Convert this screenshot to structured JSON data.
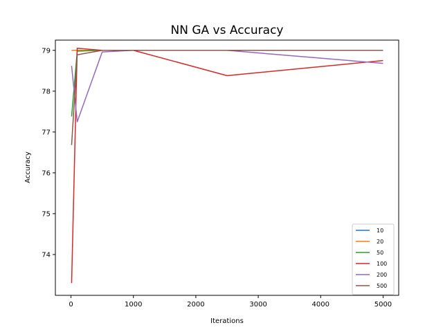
{
  "chart_data": {
    "type": "line",
    "title": "NN GA vs Accuracy",
    "xlabel": "Iterations",
    "ylabel": "Accuracy",
    "xlim": [
      -250,
      5250
    ],
    "ylim": [
      73.0,
      79.25
    ],
    "xticks": [
      0,
      1000,
      2000,
      3000,
      4000,
      5000
    ],
    "yticks": [
      74,
      75,
      76,
      77,
      78,
      79
    ],
    "legend_position": "lower-right",
    "grid": false,
    "series": [
      {
        "name": "10",
        "color": "#1f77b4",
        "x": [
          10,
          100,
          500,
          1000,
          2500,
          5000
        ],
        "y": [
          79.0,
          79.0,
          79.0,
          79.0,
          79.0,
          79.0
        ]
      },
      {
        "name": "20",
        "color": "#ff7f0e",
        "x": [
          10,
          100,
          500,
          1000,
          2500,
          5000
        ],
        "y": [
          79.0,
          79.0,
          79.0,
          79.0,
          79.0,
          79.0
        ]
      },
      {
        "name": "50",
        "color": "#2ca02c",
        "x": [
          10,
          100,
          500,
          1000,
          2500,
          5000
        ],
        "y": [
          77.38,
          78.98,
          79.0,
          79.0,
          79.0,
          79.0
        ]
      },
      {
        "name": "100",
        "color": "#d62728",
        "x": [
          10,
          100,
          500,
          1000,
          2500,
          5000
        ],
        "y": [
          73.3,
          79.05,
          79.0,
          79.0,
          78.38,
          78.75
        ]
      },
      {
        "name": "200",
        "color": "#9467bd",
        "x": [
          10,
          100,
          500,
          1000,
          2500,
          5000
        ],
        "y": [
          78.62,
          77.25,
          78.96,
          79.0,
          79.0,
          78.68
        ]
      },
      {
        "name": "500",
        "color": "#8c564b",
        "x": [
          10,
          100,
          500,
          1000,
          2500,
          5000
        ],
        "y": [
          76.68,
          78.89,
          79.0,
          79.0,
          79.0,
          79.0
        ]
      }
    ]
  }
}
